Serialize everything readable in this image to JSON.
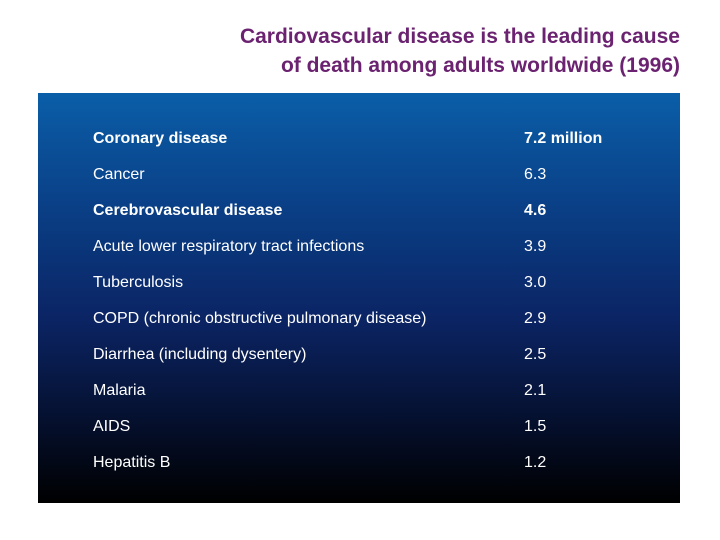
{
  "title": {
    "line1": "Cardiovascular disease is the leading cause",
    "line2": "of death among adults worldwide (1996)"
  },
  "colors": {
    "title": "#6b2270",
    "panel_top": "#0a5ea8",
    "panel_bottom": "#000000",
    "text": "#ffffff"
  },
  "table": {
    "rows": [
      {
        "cause": "Coronary disease",
        "deaths": "7.2 million",
        "bold": true
      },
      {
        "cause": "Cancer",
        "deaths": "6.3",
        "bold": false
      },
      {
        "cause": "Cerebrovascular disease",
        "deaths": "4.6",
        "bold": true
      },
      {
        "cause": "Acute lower respiratory tract infections",
        "deaths": "3.9",
        "bold": false
      },
      {
        "cause": "Tuberculosis",
        "deaths": "3.0",
        "bold": false
      },
      {
        "cause": "COPD (chronic obstructive pulmonary disease)",
        "deaths": "2.9",
        "bold": false
      },
      {
        "cause": "Diarrhea (including dysentery)",
        "deaths": "2.5",
        "bold": false
      },
      {
        "cause": "Malaria",
        "deaths": "2.1",
        "bold": false
      },
      {
        "cause": "AIDS",
        "deaths": "1.5",
        "bold": false
      },
      {
        "cause": "Hepatitis B",
        "deaths": "1.2",
        "bold": false
      }
    ]
  }
}
